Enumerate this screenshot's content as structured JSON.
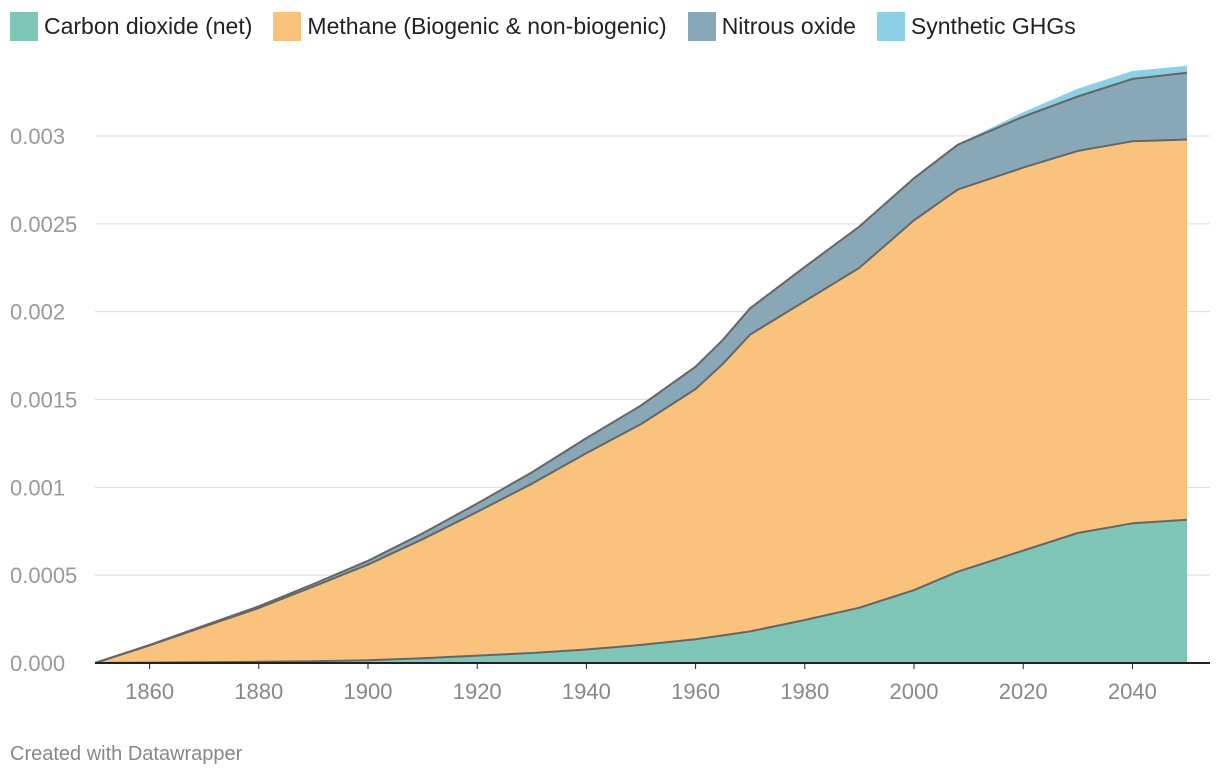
{
  "legend": [
    {
      "label": "Carbon dioxide (net)",
      "color": "#80c6b7"
    },
    {
      "label": "Methane (Biogenic & non-biogenic)",
      "color": "#f9c37e"
    },
    {
      "label": "Nitrous oxide",
      "color": "#88a8b8"
    },
    {
      "label": "Synthetic GHGs",
      "color": "#8dd0e4"
    }
  ],
  "footer": "Created with Datawrapper",
  "chart_data": {
    "type": "area",
    "stacked": true,
    "title": "",
    "xlabel": "",
    "ylabel": "",
    "xlim": [
      1850,
      2050
    ],
    "ylim": [
      0,
      0.0034
    ],
    "grid": true,
    "legend_position": "top",
    "y_ticks": [
      "0.000",
      "0.0005",
      "0.001",
      "0.0015",
      "0.002",
      "0.0025",
      "0.003"
    ],
    "y_tick_values": [
      0,
      0.0005,
      0.001,
      0.0015,
      0.002,
      0.0025,
      0.003
    ],
    "x_ticks": [
      "1860",
      "1880",
      "1900",
      "1920",
      "1940",
      "1960",
      "1980",
      "2000",
      "2020",
      "2040"
    ],
    "x_tick_values": [
      1860,
      1880,
      1900,
      1920,
      1940,
      1960,
      1980,
      2000,
      2020,
      2040
    ],
    "x": [
      1850,
      1860,
      1870,
      1880,
      1890,
      1900,
      1910,
      1920,
      1930,
      1940,
      1950,
      1960,
      1965,
      1970,
      1980,
      1990,
      2000,
      2008,
      2020,
      2030,
      2040,
      2050
    ],
    "series": [
      {
        "name": "Carbon dioxide (net)",
        "color": "#80c6b7",
        "values": [
          0,
          2e-06,
          4e-06,
          7e-06,
          1e-05,
          1.6e-05,
          2.7e-05,
          4.2e-05,
          5.7e-05,
          7.7e-05,
          0.000103,
          0.000135,
          0.000157,
          0.00018,
          0.000245,
          0.000315,
          0.000415,
          0.00052,
          0.00064,
          0.00074,
          0.000795,
          0.000815
        ]
      },
      {
        "name": "Methane (Biogenic & non-biogenic)",
        "color": "#f9c37e",
        "values": [
          0,
          9.8e-05,
          0.000203,
          0.000306,
          0.000425,
          0.000544,
          0.000678,
          0.000818,
          0.000963,
          0.001118,
          0.001257,
          0.001425,
          0.001546,
          0.00169,
          0.001815,
          0.001935,
          0.002105,
          0.002175,
          0.00218,
          0.002175,
          0.002175,
          0.002165
        ]
      },
      {
        "name": "Nitrous oxide",
        "color": "#88a8b8",
        "values": [
          0,
          3e-06,
          6e-06,
          1e-05,
          1.5e-05,
          2.2e-05,
          3.3e-05,
          4.8e-05,
          6.5e-05,
          8.5e-05,
          0.000106,
          0.000127,
          0.000137,
          0.00015,
          0.000195,
          0.000235,
          0.00024,
          0.000255,
          0.00029,
          0.00031,
          0.000355,
          0.00038
        ]
      },
      {
        "name": "Synthetic GHGs",
        "color": "#8dd0e4",
        "values": [
          0,
          0,
          0,
          0,
          0,
          0,
          0,
          0,
          0,
          0,
          0,
          0,
          0,
          0,
          0,
          0,
          0,
          5e-06,
          2.5e-05,
          4.5e-05,
          4.5e-05,
          4e-05
        ]
      }
    ]
  }
}
